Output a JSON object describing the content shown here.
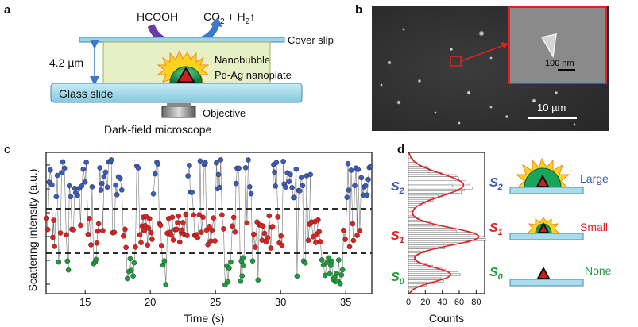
{
  "panels": {
    "a": "a",
    "b": "b",
    "c": "c",
    "d": "d"
  },
  "panel_a": {
    "reactant": "HCOOH",
    "product_pre": "CO",
    "product_sub": "2",
    "product_mid": " + H",
    "product_sub2": "2",
    "product_arrow": "↑",
    "cover_slip": "Cover slip",
    "height": "4.2 µm",
    "nanobubble": "Nanobubble",
    "nanoplate": "Pd-Ag nanoplate",
    "glass_slide": "Glass slide",
    "objective": "Objective",
    "microscope": "Dark-field microscope",
    "colors": {
      "cover": "#9fd4e8",
      "slide": "#a9dcec",
      "fluid": "#e7f0c4",
      "bubble": "#1aa35a",
      "triangle": "#cc1f1f",
      "arrow_purple": "#6a3ba6",
      "arrow_blue": "#3c7ac8"
    }
  },
  "panel_b": {
    "inset_scale": "100 nm",
    "main_scale": "10 µm",
    "colors": {
      "frame": "#e02222"
    }
  },
  "chart_data": [
    {
      "type": "scatter",
      "xlabel": "Time (s)",
      "ylabel": "Scattering intensity (a.u.)",
      "xlim": [
        12,
        37
      ],
      "x_ticks": [
        15,
        20,
        25,
        30,
        35
      ],
      "states": [
        {
          "name": "S2",
          "color": "#3a5cb8",
          "level": "high"
        },
        {
          "name": "S1",
          "color": "#e02020",
          "level": "mid"
        },
        {
          "name": "S0",
          "color": "#1e9b3a",
          "level": "low"
        }
      ],
      "thresholds": [
        "upper",
        "lower"
      ],
      "grid": false
    },
    {
      "type": "bar",
      "orientation": "horizontal",
      "xlabel": "Counts",
      "x_ticks": [
        0,
        20,
        40,
        60,
        80
      ],
      "xlim": [
        0,
        90
      ],
      "peaks": [
        {
          "state": "S2",
          "count": 65
        },
        {
          "state": "S1",
          "count": 83
        },
        {
          "state": "S0",
          "count": 50
        }
      ],
      "fit": "sum of Gaussians"
    }
  ],
  "panel_d": {
    "states": [
      {
        "sym": "S",
        "sub": "2",
        "label": "Large",
        "color": "#3a5cb8"
      },
      {
        "sym": "S",
        "sub": "1",
        "label": "Small",
        "color": "#e02020"
      },
      {
        "sym": "S",
        "sub": "0",
        "label": "None",
        "color": "#1e9b3a"
      }
    ]
  }
}
